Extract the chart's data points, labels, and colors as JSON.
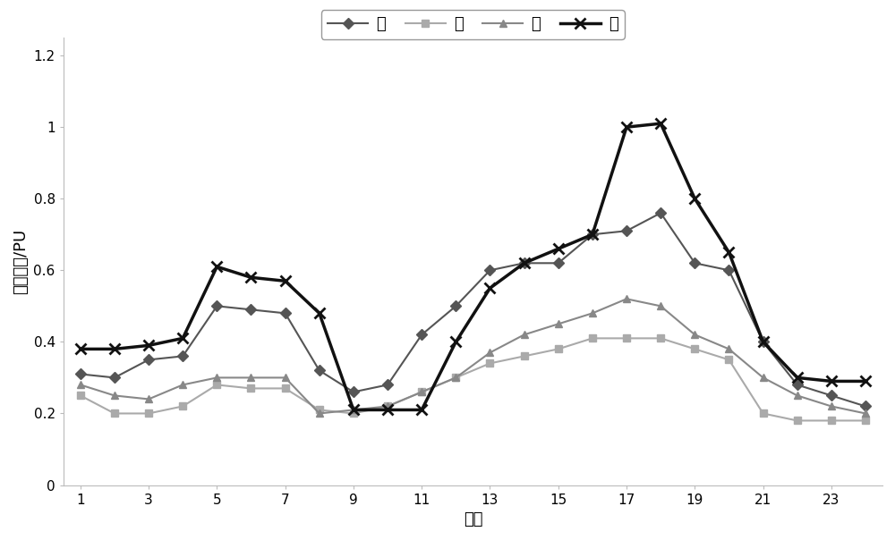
{
  "hours": [
    1,
    2,
    3,
    4,
    5,
    6,
    7,
    8,
    9,
    10,
    11,
    12,
    13,
    14,
    15,
    16,
    17,
    18,
    19,
    20,
    21,
    22,
    23,
    24
  ],
  "spring": [
    0.31,
    0.3,
    0.35,
    0.36,
    0.5,
    0.49,
    0.48,
    0.32,
    0.26,
    0.28,
    0.42,
    0.5,
    0.6,
    0.62,
    0.62,
    0.7,
    0.71,
    0.76,
    0.62,
    0.6,
    0.4,
    0.28,
    0.25,
    0.22
  ],
  "summer": [
    0.25,
    0.2,
    0.2,
    0.22,
    0.28,
    0.27,
    0.27,
    0.21,
    0.2,
    0.22,
    0.26,
    0.3,
    0.34,
    0.36,
    0.38,
    0.41,
    0.41,
    0.41,
    0.38,
    0.35,
    0.2,
    0.18,
    0.18,
    0.18
  ],
  "autumn": [
    0.28,
    0.25,
    0.24,
    0.28,
    0.3,
    0.3,
    0.3,
    0.2,
    0.21,
    0.22,
    0.26,
    0.3,
    0.37,
    0.42,
    0.45,
    0.48,
    0.52,
    0.5,
    0.42,
    0.38,
    0.3,
    0.25,
    0.22,
    0.2
  ],
  "winter": [
    0.38,
    0.38,
    0.39,
    0.41,
    0.61,
    0.58,
    0.57,
    0.48,
    0.21,
    0.21,
    0.21,
    0.4,
    0.55,
    0.62,
    0.66,
    0.7,
    1.0,
    1.01,
    0.8,
    0.65,
    0.4,
    0.3,
    0.29,
    0.29
  ],
  "spring_color": "#555555",
  "summer_color": "#aaaaaa",
  "autumn_color": "#888888",
  "winter_color": "#111111",
  "xlabel": "时刻",
  "ylabel": "风电功率/PU",
  "xticks": [
    1,
    3,
    5,
    7,
    9,
    11,
    13,
    15,
    17,
    19,
    21,
    23
  ],
  "yticks": [
    0,
    0.2,
    0.4,
    0.6,
    0.8,
    1.0,
    1.2
  ],
  "ylim": [
    0,
    1.25
  ],
  "xlim": [
    0.5,
    24.5
  ],
  "legend_labels": [
    "春",
    "夏",
    "秋",
    "冬"
  ],
  "axis_fontsize": 13,
  "legend_fontsize": 13,
  "tick_fontsize": 11
}
